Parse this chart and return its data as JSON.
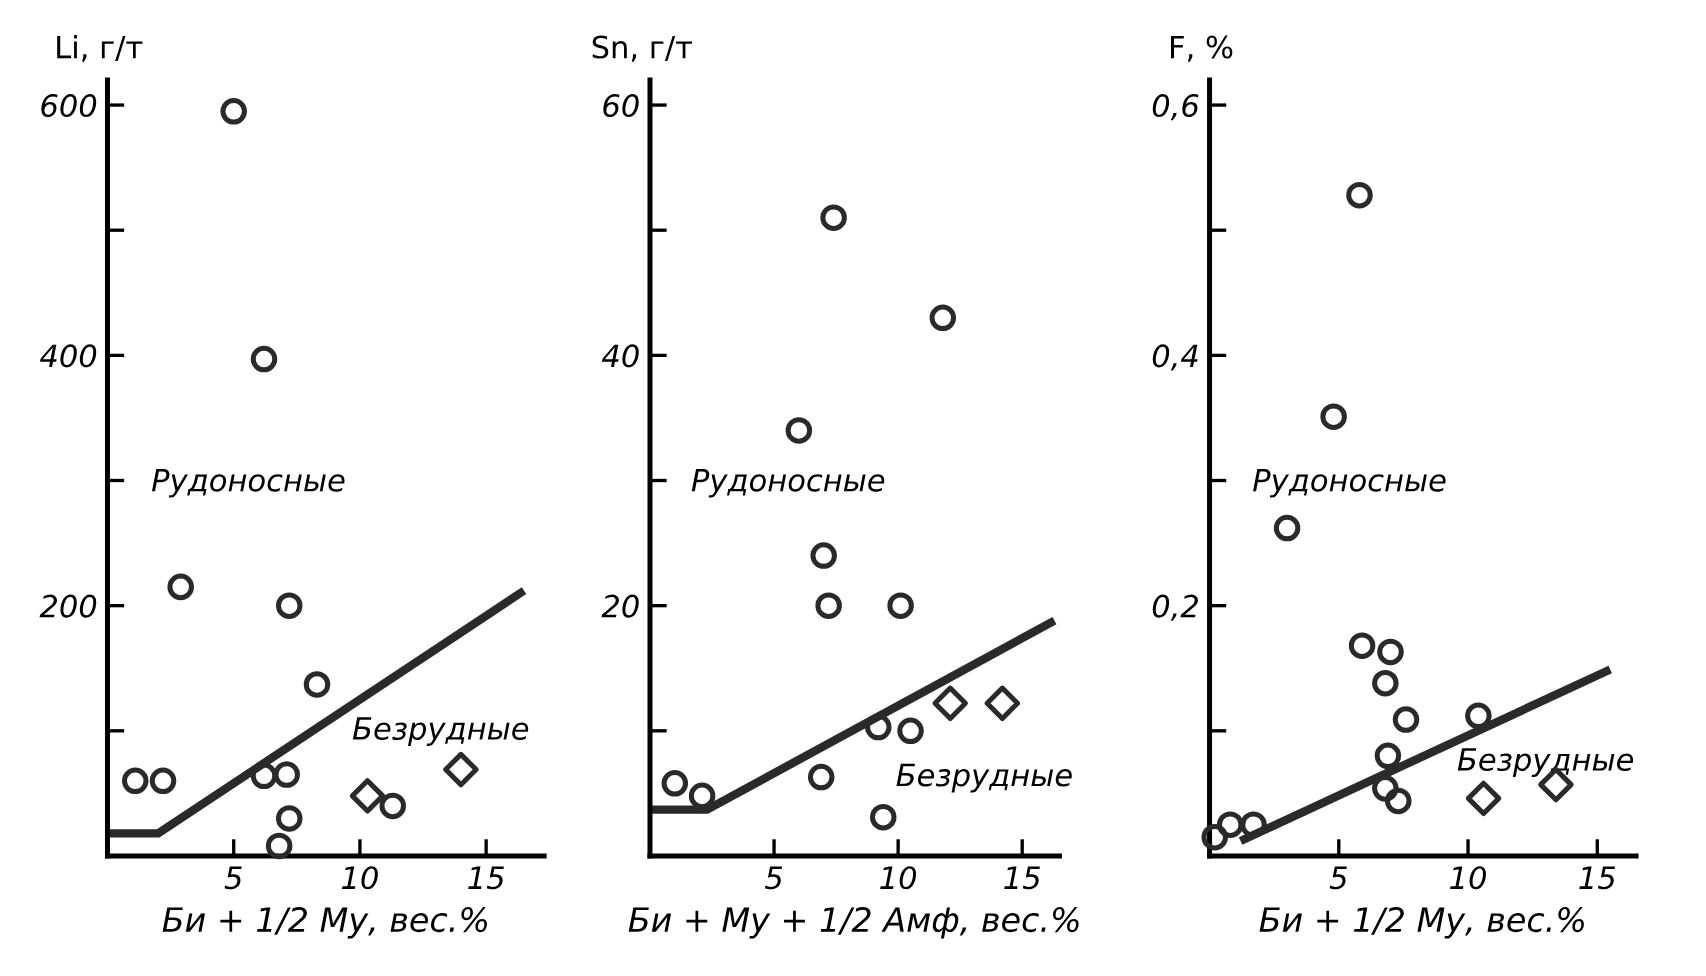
{
  "chart_data": [
    {
      "type": "scatter",
      "ylabel": "Li, г/т",
      "xlabel": "Би + 1/2 Му, вес.%",
      "xlim": [
        0,
        17.3
      ],
      "ylim": [
        0,
        620
      ],
      "xticks": [
        5,
        10,
        15
      ],
      "yticks": [
        {
          "value": 100,
          "label": null
        },
        200,
        {
          "value": 300,
          "label": null
        },
        400,
        {
          "value": 500,
          "label": null
        },
        600
      ],
      "grid": false,
      "legend": false,
      "annotations": [
        "Рудоносные",
        "Безрудные"
      ],
      "series": [
        {
          "type": "line",
          "color": "#2a2a2a",
          "marker": "none",
          "x": [
            0,
            2,
            16.5
          ],
          "values": [
            18,
            18,
            212
          ]
        },
        {
          "color": "#2a2a2a",
          "marker": "circle",
          "x": [
            5.0,
            6.2,
            2.9,
            7.2,
            8.3,
            1.1,
            2.2,
            6.2,
            7.1,
            7.2,
            11.3,
            6.8
          ],
          "values": [
            595,
            397,
            215,
            200,
            137,
            60,
            60,
            64,
            65,
            30,
            40,
            8
          ]
        },
        {
          "color": "#2a2a2a",
          "marker": "diamond",
          "x": [
            10.3,
            14.0
          ],
          "values": [
            48,
            69
          ]
        }
      ]
    },
    {
      "type": "scatter",
      "ylabel": "Sn, г/т",
      "xlabel": "Би + Му + 1/2 Амф, вес.%",
      "xlim": [
        0,
        16.5
      ],
      "ylim": [
        0,
        62
      ],
      "xticks": [
        5,
        10,
        15
      ],
      "yticks": [
        {
          "value": 10,
          "label": null
        },
        20,
        {
          "value": 30,
          "label": null
        },
        40,
        {
          "value": 50,
          "label": null
        },
        60
      ],
      "grid": false,
      "legend": false,
      "annotations": [
        "Рудоносные",
        "Безрудные"
      ],
      "series": [
        {
          "type": "line",
          "color": "#2a2a2a",
          "marker": "none",
          "x": [
            0,
            2.3,
            16.3
          ],
          "values": [
            3.7,
            3.7,
            18.8
          ]
        },
        {
          "color": "#2a2a2a",
          "marker": "circle",
          "x": [
            7.4,
            11.8,
            6.0,
            7.0,
            7.2,
            10.1,
            1.0,
            2.1,
            6.9,
            9.2,
            10.5,
            9.4
          ],
          "values": [
            51,
            43,
            34,
            24,
            20,
            20,
            5.8,
            4.8,
            6.3,
            10.3,
            10,
            3.1
          ]
        },
        {
          "color": "#2a2a2a",
          "marker": "diamond",
          "x": [
            12.1,
            14.2
          ],
          "values": [
            12.2,
            12.2
          ]
        }
      ]
    },
    {
      "type": "scatter",
      "ylabel": "F, %",
      "xlabel": "Би + 1/2 Му, вес.%",
      "xlim": [
        0,
        16.5
      ],
      "ylim": [
        0,
        0.62
      ],
      "xticks": [
        5,
        10,
        15
      ],
      "yticks": [
        {
          "value": 0.1,
          "label": null
        },
        {
          "value": 0.2,
          "label": "0,2"
        },
        {
          "value": 0.3,
          "label": null
        },
        {
          "value": 0.4,
          "label": "0,4"
        },
        {
          "value": 0.5,
          "label": null
        },
        {
          "value": 0.6,
          "label": "0,6"
        }
      ],
      "grid": false,
      "legend": false,
      "annotations": [
        "Рудоносные",
        "Безрудные"
      ],
      "series": [
        {
          "type": "line",
          "color": "#2a2a2a",
          "marker": "none",
          "x": [
            1.2,
            15.5
          ],
          "values": [
            0.012,
            0.149
          ]
        },
        {
          "color": "#2a2a2a",
          "marker": "circle",
          "x": [
            5.8,
            4.8,
            3.0,
            5.9,
            7.0,
            6.8,
            7.6,
            6.9,
            6.8,
            7.3,
            10.4,
            0.8,
            1.7,
            0.2
          ],
          "values": [
            0.528,
            0.351,
            0.262,
            0.168,
            0.163,
            0.138,
            0.109,
            0.08,
            0.054,
            0.044,
            0.112,
            0.025,
            0.025,
            0.015
          ]
        },
        {
          "color": "#2a2a2a",
          "marker": "diamond",
          "x": [
            10.6,
            13.4
          ],
          "values": [
            0.046,
            0.057
          ]
        }
      ]
    }
  ]
}
